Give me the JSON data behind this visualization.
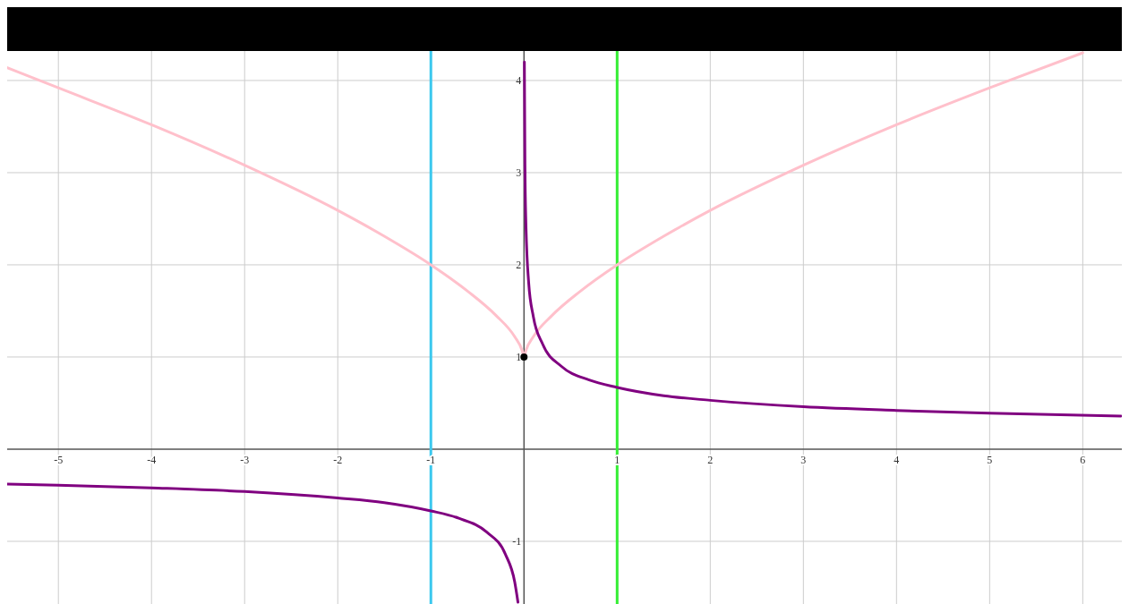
{
  "chart_data": {
    "type": "line",
    "xlim": [
      -5.55,
      6.41
    ],
    "ylim": [
      -1.68,
      4.32
    ],
    "xticks": [
      -5,
      -4,
      -3,
      -2,
      -1,
      1,
      2,
      3,
      4,
      5,
      6
    ],
    "yticks": [
      -1,
      1,
      2,
      3,
      4
    ],
    "grid": true,
    "line_style": "solid",
    "series": [
      {
        "color": "#ffc0cb",
        "x": [
          -5.55,
          -5,
          -4,
          -3,
          -2,
          -1.5,
          -1,
          -0.6,
          -0.3,
          -0.1,
          -0.02,
          0,
          0.02,
          0.1,
          0.3,
          0.6,
          1,
          1.5,
          2,
          3,
          4,
          5,
          6
        ],
        "values": [
          4.14,
          3.92,
          3.52,
          3.08,
          2.59,
          2.31,
          2,
          1.71,
          1.45,
          1.22,
          1.07,
          1,
          1.07,
          1.22,
          1.45,
          1.71,
          2,
          2.31,
          2.59,
          3.08,
          3.52,
          3.92,
          4.3
        ]
      },
      {
        "color": "#800080",
        "x": [
          0.004,
          0.01,
          0.02,
          0.05,
          0.1,
          0.2,
          0.4,
          0.7,
          1,
          1.5,
          2,
          3,
          4,
          5,
          6.41
        ],
        "values": [
          4.2,
          3.09,
          2.46,
          1.81,
          1.44,
          1.14,
          0.9,
          0.75,
          0.67,
          0.58,
          0.53,
          0.46,
          0.42,
          0.39,
          0.36
        ]
      },
      {
        "color": "#800080",
        "x": [
          -5.55,
          -5,
          -4,
          -3,
          -2,
          -1.5,
          -1,
          -0.7,
          -0.4,
          -0.2,
          -0.1,
          -0.065
        ],
        "values": [
          -0.38,
          -0.39,
          -0.42,
          -0.46,
          -0.53,
          -0.58,
          -0.67,
          -0.75,
          -0.9,
          -1.14,
          -1.44,
          -1.66
        ]
      },
      {
        "type": "scatter",
        "color": "#000000",
        "x": [
          0
        ],
        "values": [
          1
        ]
      }
    ],
    "ref_lines": [
      {
        "axis": "x",
        "value": -1,
        "color": "#3cc8ee"
      },
      {
        "axis": "x",
        "value": 1,
        "color": "#33ee33"
      }
    ]
  }
}
